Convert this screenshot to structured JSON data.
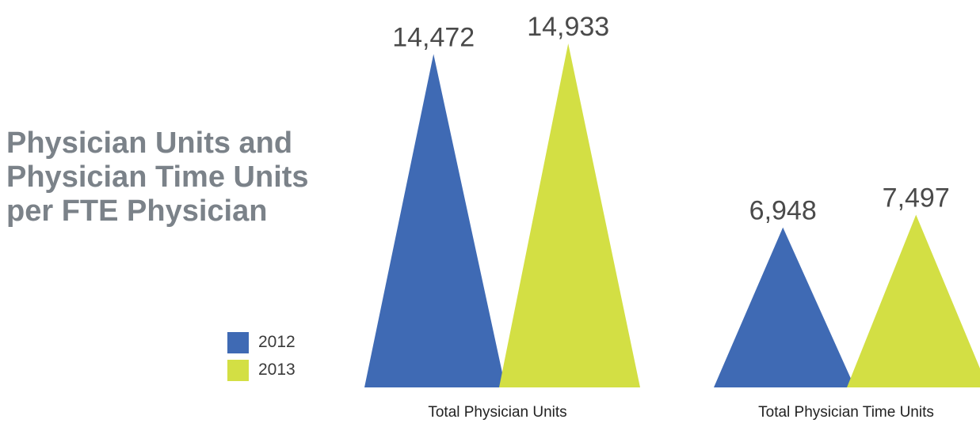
{
  "title_lines": [
    "Physician Units and",
    "Physician Time Units",
    "per FTE Physician"
  ],
  "chart_data": {
    "type": "bar",
    "shape": "triangle",
    "title": "Physician Units and Physician Time Units per FTE Physician",
    "categories": [
      "Total Physician Units",
      "Total Physician Time Units"
    ],
    "series": [
      {
        "name": "2012",
        "color": "#3f6ab4",
        "values": [
          14472,
          6948
        ],
        "labels": [
          "14,472",
          "6,948"
        ]
      },
      {
        "name": "2013",
        "color": "#d3df44",
        "values": [
          14933,
          7497
        ],
        "labels": [
          "14,933",
          "7,497"
        ]
      }
    ],
    "ylim": [
      0,
      15000
    ],
    "grid": false,
    "legend": "bottom-left"
  }
}
